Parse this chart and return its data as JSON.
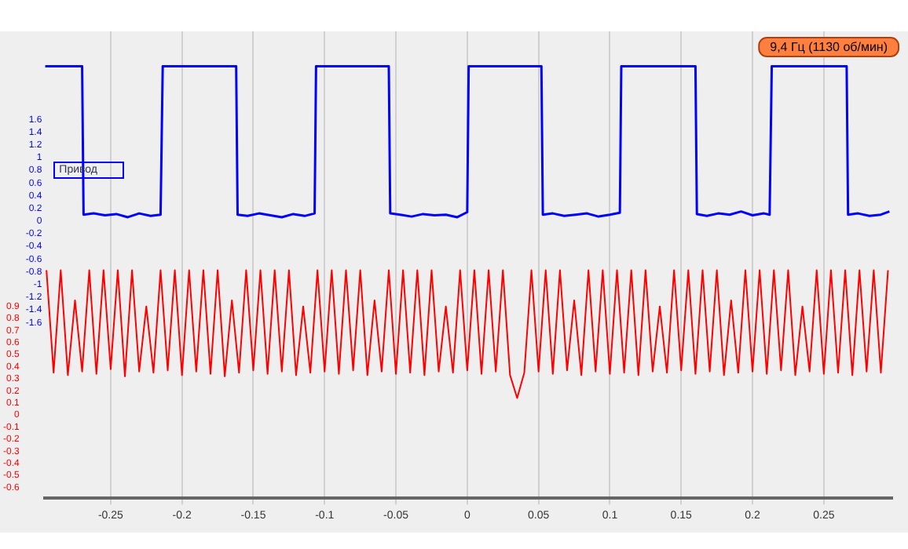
{
  "chart_data": {
    "type": "line",
    "annotations": [
      "9,4 Гц (1130 об/мин)"
    ],
    "x": [
      -0.295,
      -0.29,
      -0.285,
      -0.28,
      -0.275,
      -0.27,
      -0.265,
      -0.26,
      -0.255,
      -0.25,
      -0.245,
      -0.24,
      -0.235,
      -0.23,
      -0.225,
      -0.22,
      -0.215,
      -0.21,
      -0.205,
      -0.2,
      -0.195,
      -0.19,
      -0.185,
      -0.18,
      -0.175,
      -0.17,
      -0.165,
      -0.16,
      -0.155,
      -0.15,
      -0.145,
      -0.14,
      -0.135,
      -0.13,
      -0.125,
      -0.12,
      -0.115,
      -0.11,
      -0.105,
      -0.1,
      -0.095,
      -0.09,
      -0.085,
      -0.08,
      -0.075,
      -0.07,
      -0.065,
      -0.06,
      -0.055,
      -0.05,
      -0.045,
      -0.04,
      -0.035,
      -0.03,
      -0.025,
      -0.02,
      -0.015,
      -0.01,
      -0.005,
      0,
      0.005,
      0.01,
      0.015,
      0.02,
      0.025,
      0.03,
      0.035,
      0.04,
      0.045,
      0.05,
      0.055,
      0.06,
      0.065,
      0.07,
      0.075,
      0.08,
      0.085,
      0.09,
      0.095,
      0.1,
      0.105,
      0.11,
      0.115,
      0.12,
      0.125,
      0.13,
      0.135,
      0.14,
      0.145,
      0.15,
      0.155,
      0.16,
      0.165,
      0.17,
      0.175,
      0.18,
      0.185,
      0.19,
      0.195,
      0.2,
      0.205,
      0.21,
      0.215,
      0.22,
      0.225,
      0.23,
      0.235,
      0.24,
      0.245,
      0.25,
      0.255,
      0.26,
      0.265,
      0.27,
      0.275,
      0.28,
      0.285,
      0.29,
      0.295
    ],
    "series": [
      {
        "name": "Привод",
        "color": "#0000ff",
        "x": [
          -0.296,
          -0.27,
          -0.269,
          -0.262,
          -0.254,
          -0.246,
          -0.238,
          -0.23,
          -0.222,
          -0.215,
          -0.2135,
          -0.162,
          -0.161,
          -0.154,
          -0.146,
          -0.138,
          -0.13,
          -0.122,
          -0.114,
          -0.107,
          -0.106,
          -0.055,
          -0.054,
          -0.047,
          -0.039,
          -0.031,
          -0.023,
          -0.015,
          -0.007,
          0.0,
          0.001,
          0.052,
          0.053,
          0.06,
          0.068,
          0.076,
          0.084,
          0.092,
          0.1,
          0.107,
          0.108,
          0.16,
          0.161,
          0.168,
          0.176,
          0.184,
          0.192,
          0.2,
          0.208,
          0.212,
          0.2135,
          0.266,
          0.267,
          0.274,
          0.282,
          0.29,
          0.296
        ],
        "values": [
          2.44,
          2.44,
          0.1,
          0.12,
          0.09,
          0.11,
          0.06,
          0.12,
          0.08,
          0.1,
          2.44,
          2.44,
          0.1,
          0.08,
          0.12,
          0.09,
          0.06,
          0.11,
          0.08,
          0.12,
          2.44,
          2.44,
          0.12,
          0.1,
          0.07,
          0.11,
          0.09,
          0.1,
          0.06,
          0.14,
          2.44,
          2.44,
          0.1,
          0.12,
          0.08,
          0.1,
          0.12,
          0.07,
          0.1,
          0.13,
          2.44,
          2.44,
          0.11,
          0.08,
          0.12,
          0.1,
          0.15,
          0.09,
          0.12,
          0.1,
          2.44,
          2.44,
          0.1,
          0.12,
          0.08,
          0.1,
          0.15
        ]
      },
      {
        "color": "#ff0000",
        "axis": "y2",
        "values": [
          1.2,
          0.35,
          1.2,
          0.33,
          0.95,
          0.36,
          1.2,
          0.34,
          1.2,
          0.38,
          1.2,
          0.32,
          1.2,
          0.36,
          0.9,
          0.35,
          1.2,
          0.37,
          1.2,
          0.33,
          1.2,
          0.36,
          1.2,
          0.34,
          1.2,
          0.32,
          0.95,
          0.35,
          1.2,
          0.37,
          1.2,
          0.34,
          1.2,
          0.36,
          1.2,
          0.33,
          0.9,
          0.35,
          1.2,
          0.36,
          1.2,
          0.34,
          1.2,
          0.37,
          1.2,
          0.33,
          0.95,
          0.36,
          1.2,
          0.34,
          1.2,
          0.35,
          1.2,
          0.33,
          1.2,
          0.36,
          0.9,
          0.35,
          1.2,
          0.37,
          1.2,
          0.34,
          1.2,
          0.36,
          1.2,
          0.33,
          0.14,
          0.35,
          1.2,
          0.36,
          1.2,
          0.34,
          1.2,
          0.37,
          0.95,
          0.33,
          1.2,
          0.36,
          1.2,
          0.34,
          1.2,
          0.35,
          1.2,
          0.33,
          1.2,
          0.36,
          0.9,
          0.35,
          1.2,
          0.37,
          1.2,
          0.34,
          1.2,
          0.36,
          1.2,
          0.33,
          0.95,
          0.35,
          1.2,
          0.36,
          1.2,
          0.34,
          1.2,
          0.37,
          1.2,
          0.33,
          0.9,
          0.36,
          1.2,
          0.34,
          1.2,
          0.35,
          1.2,
          0.33,
          1.2,
          0.36,
          1.2,
          0.35,
          1.2
        ]
      }
    ],
    "xlim": [
      -0.296,
      0.298
    ],
    "xticks": [
      -0.25,
      -0.2,
      -0.15,
      -0.1,
      -0.05,
      0,
      0.05,
      0.1,
      0.15,
      0.2,
      0.25
    ],
    "ylim": [
      -4.37,
      2.99
    ],
    "yticks": [
      -1.6,
      -1.4,
      -1.2,
      -1,
      -0.8,
      -0.6,
      -0.4,
      -0.2,
      0,
      0.2,
      0.4,
      0.6,
      0.8,
      1,
      1.2,
      1.4,
      1.6
    ],
    "y2lim": [
      -0.69,
      3.18
    ],
    "y2ticks": [
      -0.6,
      -0.5,
      -0.4,
      -0.3,
      -0.2,
      -0.1,
      0,
      0.1,
      0.2,
      0.3,
      0.4,
      0.5,
      0.6,
      0.7,
      0.8,
      0.9
    ],
    "grid": "x",
    "legend": false,
    "marker": "none",
    "line_style": "solid"
  }
}
